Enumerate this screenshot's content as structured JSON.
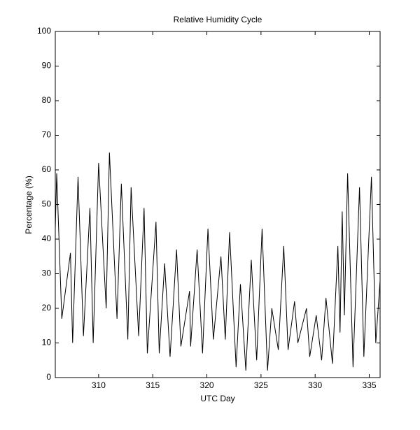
{
  "chart_data": {
    "type": "line",
    "title": "Relative Humidity Cycle",
    "x_label": "UTC Day",
    "y_label": "Percentage (%)",
    "x": [
      306.0,
      306.13,
      306.6,
      307.4,
      307.6,
      308.1,
      308.6,
      309.2,
      309.5,
      310.0,
      310.7,
      311.0,
      311.7,
      312.1,
      312.7,
      313.0,
      313.7,
      314.2,
      314.5,
      315.3,
      315.6,
      316.1,
      316.6,
      317.2,
      317.6,
      318.4,
      318.5,
      319.1,
      319.6,
      320.1,
      320.6,
      321.3,
      321.7,
      322.1,
      322.7,
      323.1,
      323.6,
      324.1,
      324.6,
      325.1,
      325.6,
      326.0,
      326.6,
      327.1,
      327.5,
      328.1,
      328.4,
      329.2,
      329.5,
      330.1,
      330.6,
      331.0,
      331.6,
      332.1,
      332.3,
      332.5,
      332.7,
      333.0,
      333.5,
      334.1,
      334.5,
      335.2,
      335.6,
      336.0
    ],
    "values": [
      43,
      59,
      17,
      36,
      10,
      58,
      12,
      49,
      10,
      62,
      20,
      65,
      17,
      56,
      11,
      55,
      12,
      49,
      7,
      45,
      7,
      33,
      6,
      37,
      9,
      25,
      9,
      37,
      7,
      43,
      11,
      35,
      11,
      42,
      3,
      27,
      2,
      34,
      5,
      43,
      2,
      20,
      8,
      38,
      8,
      22,
      10,
      20,
      6,
      18,
      5,
      23,
      4,
      38,
      13,
      48,
      18,
      59,
      3,
      55,
      6,
      58,
      10,
      28
    ],
    "color": "#000000",
    "xlim": [
      306,
      336
    ],
    "xticks": [
      310,
      315,
      320,
      325,
      330,
      335
    ],
    "ylim": [
      0,
      100
    ],
    "yticks": [
      0,
      10,
      20,
      30,
      40,
      50,
      60,
      70,
      80,
      90,
      100
    ]
  }
}
